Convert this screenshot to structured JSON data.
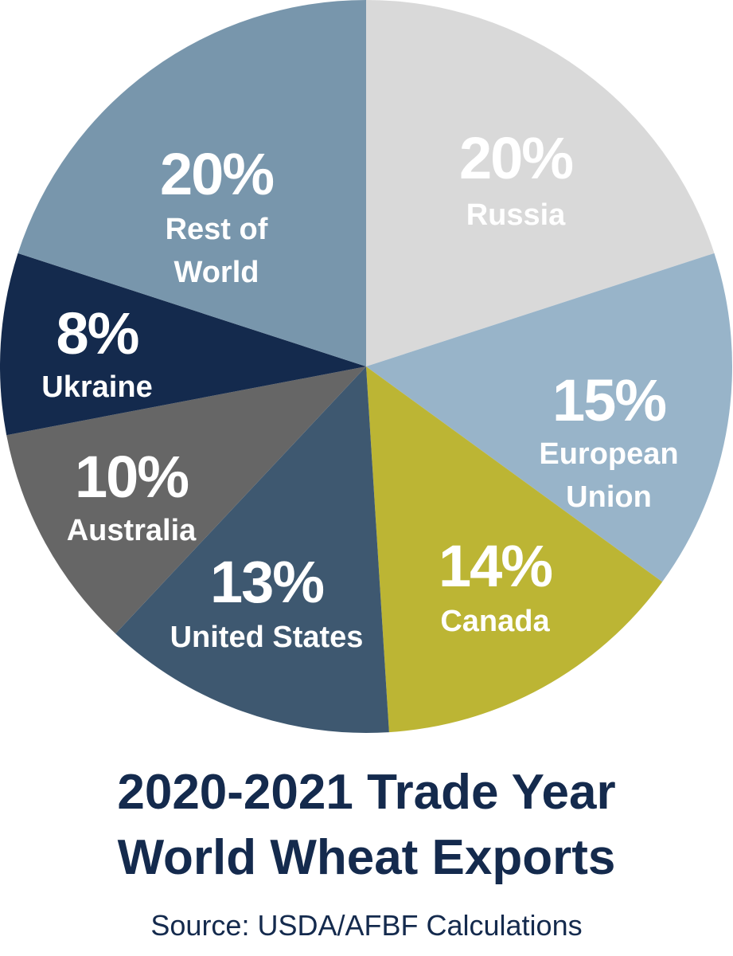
{
  "chart_data": {
    "type": "pie",
    "title_lines": [
      "2020-2021 Trade Year",
      "World Wheat Exports"
    ],
    "source": "Source: USDA/AFBF Calculations",
    "slices": [
      {
        "name_lines": [
          "Russia"
        ],
        "value": 20,
        "label": "20%",
        "color": "#d9d9d9"
      },
      {
        "name_lines": [
          "European",
          "Union"
        ],
        "value": 15,
        "label": "15%",
        "color": "#98b4c9"
      },
      {
        "name_lines": [
          "Canada"
        ],
        "value": 14,
        "label": "14%",
        "color": "#bcb534"
      },
      {
        "name_lines": [
          "United States"
        ],
        "value": 13,
        "label": "13%",
        "color": "#3e5870"
      },
      {
        "name_lines": [
          "Australia"
        ],
        "value": 10,
        "label": "10%",
        "color": "#666666"
      },
      {
        "name_lines": [
          "Ukraine"
        ],
        "value": 8,
        "label": "8%",
        "color": "#142a4d"
      },
      {
        "name_lines": [
          "Rest of",
          "World"
        ],
        "value": 20,
        "label": "20%",
        "color": "#7896ac"
      }
    ]
  }
}
